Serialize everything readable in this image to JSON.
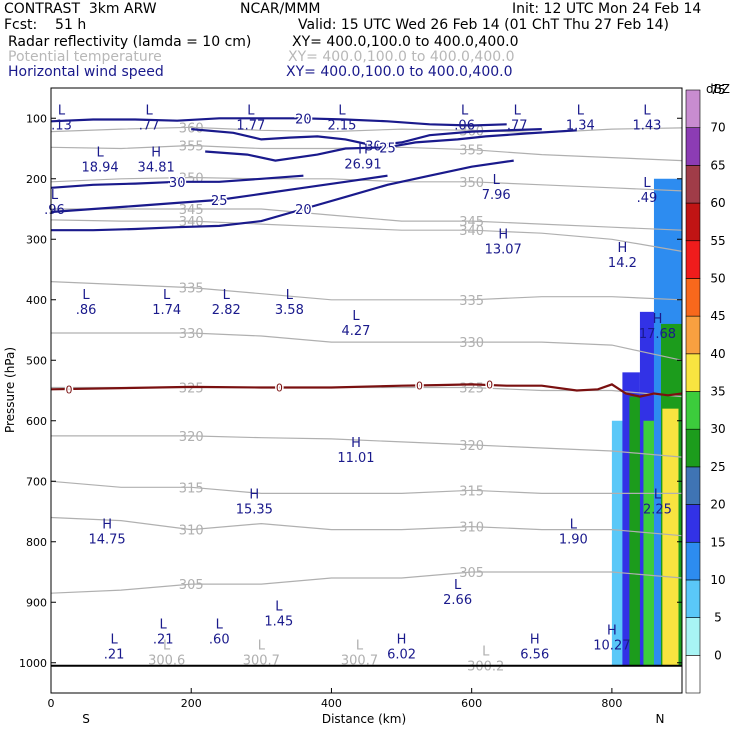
{
  "header": {
    "line1_left": "CONTRAST  3km ARW",
    "line1_mid": "NCAR/MMM",
    "line1_right": "Init: 12 UTC Mon 24 Feb 14",
    "line2_left": "Fcst:    51 h",
    "line2_right": "Valid: 15 UTC Wed 26 Feb 14 (01 ChT Thu 27 Feb 14)",
    "field1_name": "Radar reflectivity (lamda = 10 cm)",
    "field1_xy": "XY= 400.0,100.0 to 400.0,400.0",
    "field2_name": "Potential temperature",
    "field2_xy": "XY= 400.0,100.0 to 400.0,400.0",
    "field3_name": "Horizontal wind speed",
    "field3_xy": "XY= 400.0,100.0 to 400.0,400.0"
  },
  "colors": {
    "wind": "#1a1a8c",
    "theta": "#b0b0b0",
    "freezing": "#7a1010",
    "ground": "#000000"
  },
  "chart_data": {
    "type": "cross-section",
    "xlabel": "Distance (km)",
    "ylabel": "Pressure (hPa)",
    "xlim": [
      0,
      900
    ],
    "ylim": [
      1050,
      50
    ],
    "x_ticks": [
      "0",
      "200",
      "400",
      "600",
      "800"
    ],
    "y_ticks": [
      "100",
      "200",
      "300",
      "400",
      "500",
      "600",
      "700",
      "800",
      "900",
      "1000"
    ],
    "x_end_labels": {
      "left": "S",
      "right": "N"
    },
    "colorbar": {
      "unit": "dBZ",
      "levels": [
        "0",
        "5",
        "10",
        "15",
        "20",
        "25",
        "30",
        "35",
        "40",
        "45",
        "50",
        "55",
        "60",
        "65",
        "70",
        "75"
      ],
      "colors": [
        "#ffffff",
        "#a8f4f4",
        "#5ac8f8",
        "#2d8cf0",
        "#3232e6",
        "#3f74b4",
        "#1c9c1c",
        "#3ccc3c",
        "#f8e440",
        "#f8a040",
        "#f8681c",
        "#f01c1c",
        "#c01414",
        "#a03c48",
        "#8c3cb4",
        "#c88cd0"
      ]
    },
    "theta_contours": [
      {
        "label": "360",
        "x": [
          0,
          100,
          200,
          300,
          400,
          500,
          600,
          700,
          800,
          900
        ],
        "p": [
          122,
          118,
          115,
          120,
          122,
          118,
          120,
          124,
          118,
          116
        ]
      },
      {
        "label": "355",
        "x": [
          0,
          100,
          200,
          300,
          400,
          500,
          600,
          700,
          800,
          900
        ],
        "p": [
          148,
          150,
          145,
          150,
          150,
          148,
          152,
          160,
          165,
          170
        ]
      },
      {
        "label": "350",
        "x": [
          0,
          100,
          200,
          300,
          400,
          500,
          600,
          700,
          800,
          900
        ],
        "p": [
          205,
          200,
          198,
          200,
          200,
          205,
          205,
          210,
          215,
          220
        ]
      },
      {
        "label": "345",
        "x": [
          0,
          100,
          200,
          300,
          400,
          500,
          600,
          700,
          800,
          900
        ],
        "p": [
          250,
          250,
          250,
          250,
          260,
          270,
          270,
          275,
          280,
          285
        ]
      },
      {
        "label": "340",
        "x": [
          0,
          100,
          200,
          300,
          400,
          500,
          600,
          700,
          800,
          900
        ],
        "p": [
          268,
          270,
          270,
          275,
          280,
          285,
          285,
          290,
          300,
          320
        ]
      },
      {
        "label": "335",
        "x": [
          0,
          100,
          200,
          300,
          400,
          500,
          600,
          700,
          800,
          900
        ],
        "p": [
          370,
          375,
          380,
          390,
          400,
          400,
          400,
          395,
          395,
          400
        ]
      },
      {
        "label": "330",
        "x": [
          0,
          100,
          200,
          300,
          400,
          500,
          600,
          700,
          800,
          900
        ],
        "p": [
          455,
          455,
          455,
          460,
          470,
          470,
          470,
          470,
          475,
          500
        ]
      },
      {
        "label": "325",
        "x": [
          0,
          100,
          200,
          300,
          400,
          500,
          600,
          700,
          800,
          900
        ],
        "p": [
          545,
          545,
          545,
          545,
          545,
          545,
          545,
          550,
          550,
          560
        ]
      },
      {
        "label": "320",
        "x": [
          0,
          100,
          200,
          300,
          400,
          500,
          600,
          700,
          800,
          900
        ],
        "p": [
          625,
          625,
          625,
          628,
          630,
          635,
          640,
          645,
          650,
          660
        ]
      },
      {
        "label": "315",
        "x": [
          0,
          100,
          200,
          300,
          400,
          500,
          600,
          700,
          800,
          900
        ],
        "p": [
          700,
          710,
          710,
          720,
          720,
          720,
          715,
          720,
          720,
          720
        ]
      },
      {
        "label": "310",
        "x": [
          0,
          100,
          200,
          300,
          400,
          500,
          600,
          700,
          800,
          900
        ],
        "p": [
          760,
          765,
          780,
          770,
          780,
          780,
          775,
          780,
          780,
          790
        ]
      },
      {
        "label": "305",
        "x": [
          0,
          100,
          200,
          300,
          400,
          500,
          600,
          700,
          800,
          900
        ],
        "p": [
          885,
          880,
          870,
          870,
          860,
          860,
          850,
          850,
          850,
          860
        ]
      }
    ],
    "wind_contours": [
      {
        "label": "20",
        "x": [
          0,
          60,
          120,
          180,
          240,
          300,
          360,
          420,
          480,
          540,
          600,
          650
        ],
        "p": [
          105,
          102,
          102,
          104,
          100,
          100,
          100,
          102,
          105,
          110,
          112,
          110
        ]
      },
      {
        "label": "30",
        "x": [
          200,
          260,
          300,
          340,
          380,
          420,
          460,
          500,
          540,
          600,
          650,
          700
        ],
        "p": [
          118,
          124,
          135,
          132,
          130,
          135,
          145,
          140,
          128,
          122,
          120,
          118
        ]
      },
      {
        "label": "25",
        "x": [
          220,
          280,
          320,
          380,
          420,
          480,
          520,
          580,
          620,
          680,
          750
        ],
        "p": [
          155,
          160,
          170,
          160,
          150,
          148,
          140,
          135,
          130,
          125,
          120
        ]
      },
      {
        "label": "30",
        "x": [
          0,
          60,
          120,
          180,
          240,
          300,
          360
        ],
        "p": [
          215,
          210,
          208,
          205,
          205,
          200,
          195
        ]
      },
      {
        "label": "25",
        "x": [
          0,
          60,
          120,
          180,
          240,
          300,
          360,
          420,
          480
        ],
        "p": [
          255,
          250,
          245,
          240,
          235,
          225,
          215,
          205,
          195
        ]
      },
      {
        "label": "20",
        "x": [
          0,
          60,
          120,
          180,
          240,
          300,
          360,
          420,
          480,
          540,
          600,
          660
        ],
        "p": [
          285,
          285,
          283,
          280,
          278,
          270,
          250,
          230,
          210,
          195,
          180,
          170
        ]
      }
    ],
    "freezing_level": {
      "label": "0",
      "x": [
        0,
        100,
        200,
        300,
        400,
        500,
        550,
        600,
        650,
        700,
        750,
        780,
        800,
        820,
        840,
        860,
        880,
        900
      ],
      "p": [
        548,
        546,
        544,
        545,
        545,
        542,
        541,
        540,
        542,
        542,
        550,
        548,
        540,
        555,
        560,
        555,
        558,
        555
      ]
    },
    "extrema": [
      {
        "type": "L",
        "value": ".13",
        "x": 15,
        "p": 100
      },
      {
        "type": "L",
        "value": ".77",
        "x": 140,
        "p": 100
      },
      {
        "type": "L",
        "value": "1.77",
        "x": 285,
        "p": 100
      },
      {
        "type": "L",
        "value": "2.15",
        "x": 415,
        "p": 100
      },
      {
        "type": "L",
        "value": ".06",
        "x": 590,
        "p": 100
      },
      {
        "type": "L",
        "value": ".77",
        "x": 665,
        "p": 100
      },
      {
        "type": "L",
        "value": "1.34",
        "x": 755,
        "p": 100
      },
      {
        "type": "L",
        "value": "1.43",
        "x": 850,
        "p": 100
      },
      {
        "type": "L",
        "value": "18.94",
        "x": 70,
        "p": 170
      },
      {
        "type": "H",
        "value": "34.81",
        "x": 150,
        "p": 170
      },
      {
        "type": "H",
        "value": "26.91",
        "x": 445,
        "p": 165
      },
      {
        "type": "L",
        "value": "7.96",
        "x": 635,
        "p": 215
      },
      {
        "type": "L",
        "value": ".96",
        "x": 5,
        "p": 240
      },
      {
        "type": "L",
        "value": ".49",
        "x": 850,
        "p": 220
      },
      {
        "type": "H",
        "value": "13.07",
        "x": 645,
        "p": 305
      },
      {
        "type": "H",
        "value": "14.2",
        "x": 815,
        "p": 328
      },
      {
        "type": "L",
        "value": ".86",
        "x": 50,
        "p": 405
      },
      {
        "type": "L",
        "value": "1.74",
        "x": 165,
        "p": 405
      },
      {
        "type": "L",
        "value": "2.82",
        "x": 250,
        "p": 405
      },
      {
        "type": "L",
        "value": "3.58",
        "x": 340,
        "p": 405
      },
      {
        "type": "L",
        "value": "4.27",
        "x": 435,
        "p": 440
      },
      {
        "type": "H",
        "value": "17.68",
        "x": 865,
        "p": 445
      },
      {
        "type": "H",
        "value": "11.01",
        "x": 435,
        "p": 650
      },
      {
        "type": "H",
        "value": "15.35",
        "x": 290,
        "p": 735
      },
      {
        "type": "H",
        "value": "14.75",
        "x": 80,
        "p": 785
      },
      {
        "type": "L",
        "value": "1.90",
        "x": 745,
        "p": 785
      },
      {
        "type": "L",
        "value": "2.25",
        "x": 865,
        "p": 735
      },
      {
        "type": "L",
        "value": "2.66",
        "x": 580,
        "p": 885
      },
      {
        "type": "L",
        "value": "1.45",
        "x": 325,
        "p": 920
      },
      {
        "type": "L",
        "value": ".21",
        "x": 160,
        "p": 950
      },
      {
        "type": "L",
        "value": ".60",
        "x": 240,
        "p": 950
      },
      {
        "type": "L",
        "value": ".21",
        "x": 90,
        "p": 975
      },
      {
        "type": "H",
        "value": "6.02",
        "x": 500,
        "p": 975
      },
      {
        "type": "H",
        "value": "6.56",
        "x": 690,
        "p": 975
      },
      {
        "type": "H",
        "value": "10.27",
        "x": 800,
        "p": 960
      },
      {
        "type": "L",
        "value": "300.6",
        "x": 165,
        "p": 985,
        "field": "theta"
      },
      {
        "type": "L",
        "value": "300.7",
        "x": 300,
        "p": 985,
        "field": "theta"
      },
      {
        "type": "L",
        "value": "300.7",
        "x": 440,
        "p": 985,
        "field": "theta"
      },
      {
        "type": "L",
        "value": "300.2",
        "x": 620,
        "p": 995,
        "field": "theta"
      }
    ],
    "reflectivity_columns": [
      {
        "x0": 800,
        "x1": 820,
        "p_top": 600,
        "dbz": 10
      },
      {
        "x0": 815,
        "x1": 840,
        "p_top": 520,
        "dbz": 20
      },
      {
        "x0": 825,
        "x1": 845,
        "p_top": 560,
        "dbz": 30
      },
      {
        "x0": 840,
        "x1": 870,
        "p_top": 420,
        "dbz": 20
      },
      {
        "x0": 845,
        "x1": 868,
        "p_top": 600,
        "dbz": 35
      },
      {
        "x0": 860,
        "x1": 900,
        "p_top": 200,
        "dbz": 15
      },
      {
        "x0": 870,
        "x1": 900,
        "p_top": 440,
        "dbz": 30
      },
      {
        "x0": 872,
        "x1": 895,
        "p_top": 580,
        "dbz": 40
      }
    ]
  }
}
